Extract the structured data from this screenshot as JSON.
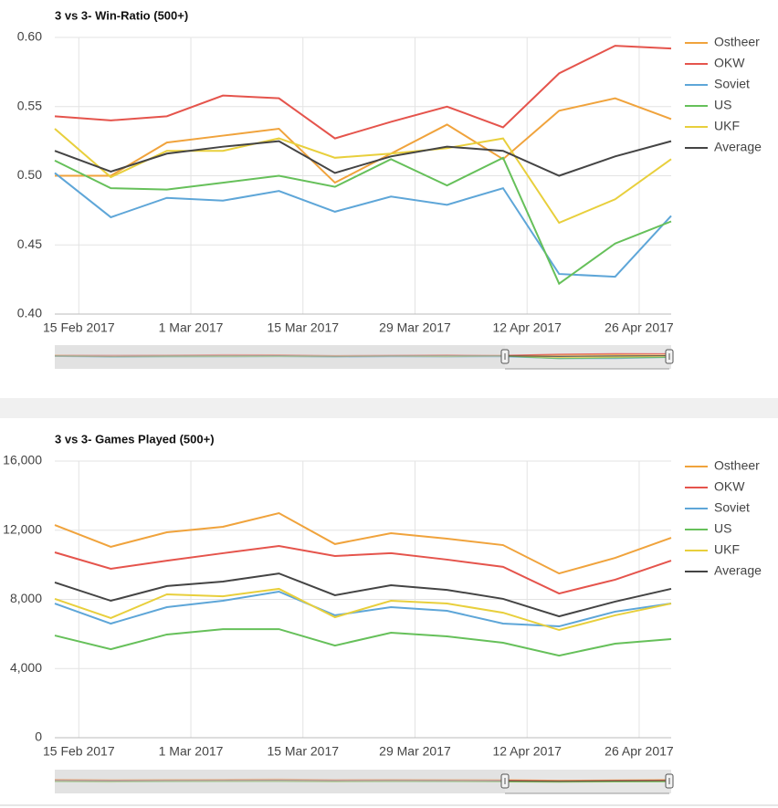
{
  "chart_data": [
    {
      "type": "line",
      "title": "3 vs 3- Win-Ratio (500+)",
      "x": [
        "2017-02-12",
        "2017-02-19",
        "2017-02-26",
        "2017-03-05",
        "2017-03-12",
        "2017-03-19",
        "2017-03-26",
        "2017-04-02",
        "2017-04-09",
        "2017-04-16",
        "2017-04-23",
        "2017-04-30"
      ],
      "xlim": [
        "2017-02-12",
        "2017-04-30"
      ],
      "xticks": [
        {
          "value": "2017-02-15",
          "label": "15 Feb 2017"
        },
        {
          "value": "2017-03-01",
          "label": "1 Mar 2017"
        },
        {
          "value": "2017-03-15",
          "label": "15 Mar 2017"
        },
        {
          "value": "2017-03-29",
          "label": "29 Mar 2017"
        },
        {
          "value": "2017-04-12",
          "label": "12 Apr 2017"
        },
        {
          "value": "2017-04-26",
          "label": "26 Apr 2017"
        }
      ],
      "ylim": [
        0.4,
        0.6
      ],
      "yticks": [
        {
          "value": 0.4,
          "label": "0.40"
        },
        {
          "value": 0.45,
          "label": "0.45"
        },
        {
          "value": 0.5,
          "label": "0.50"
        },
        {
          "value": 0.55,
          "label": "0.55"
        },
        {
          "value": 0.6,
          "label": "0.60"
        }
      ],
      "grid": true,
      "legend": "right",
      "series": [
        {
          "name": "Ostheer",
          "color": "#f0a33c",
          "values": [
            0.5,
            0.5,
            0.524,
            0.529,
            0.534,
            0.495,
            0.516,
            0.537,
            0.512,
            0.547,
            0.556,
            0.541
          ]
        },
        {
          "name": "OKW",
          "color": "#e5544c",
          "values": [
            0.543,
            0.54,
            0.543,
            0.558,
            0.556,
            0.527,
            0.539,
            0.55,
            0.535,
            0.574,
            0.594,
            0.592
          ]
        },
        {
          "name": "Soviet",
          "color": "#5ea6d8",
          "values": [
            0.502,
            0.47,
            0.484,
            0.482,
            0.489,
            0.474,
            0.485,
            0.479,
            0.491,
            0.429,
            0.427,
            0.471
          ]
        },
        {
          "name": "US",
          "color": "#66c05a",
          "values": [
            0.511,
            0.491,
            0.49,
            0.495,
            0.5,
            0.492,
            0.512,
            0.493,
            0.513,
            0.422,
            0.451,
            0.467
          ]
        },
        {
          "name": "UKF",
          "color": "#e8cf3c",
          "values": [
            0.534,
            0.499,
            0.518,
            0.518,
            0.527,
            0.513,
            0.516,
            0.52,
            0.527,
            0.466,
            0.483,
            0.512
          ]
        },
        {
          "name": "Average",
          "color": "#444444",
          "values": [
            0.518,
            0.503,
            0.516,
            0.521,
            0.525,
            0.502,
            0.514,
            0.521,
            0.518,
            0.5,
            0.514,
            0.525
          ]
        }
      ]
    },
    {
      "type": "line",
      "title": "3 vs 3- Games Played (500+)",
      "x": [
        "2017-02-12",
        "2017-02-19",
        "2017-02-26",
        "2017-03-05",
        "2017-03-12",
        "2017-03-19",
        "2017-03-26",
        "2017-04-02",
        "2017-04-09",
        "2017-04-16",
        "2017-04-23",
        "2017-04-30"
      ],
      "xlim": [
        "2017-02-12",
        "2017-04-30"
      ],
      "xticks": [
        {
          "value": "2017-02-15",
          "label": "15 Feb 2017"
        },
        {
          "value": "2017-03-01",
          "label": "1 Mar 2017"
        },
        {
          "value": "2017-03-15",
          "label": "15 Mar 2017"
        },
        {
          "value": "2017-03-29",
          "label": "29 Mar 2017"
        },
        {
          "value": "2017-04-12",
          "label": "12 Apr 2017"
        },
        {
          "value": "2017-04-26",
          "label": "26 Apr 2017"
        }
      ],
      "ylim": [
        0,
        16000
      ],
      "yticks": [
        0,
        {
          "value": 4000,
          "label": "4,000"
        },
        {
          "value": 8000,
          "label": "8,000"
        },
        {
          "value": 12000,
          "label": "12,000"
        },
        {
          "value": 16000,
          "label": "16,000"
        }
      ],
      "grid": true,
      "legend": "right",
      "series": [
        {
          "name": "Ostheer",
          "color": "#f0a33c",
          "values": [
            12300,
            11040,
            11880,
            12200,
            12990,
            11200,
            11830,
            11510,
            11140,
            9500,
            10400,
            11560
          ]
        },
        {
          "name": "OKW",
          "color": "#e5544c",
          "values": [
            10720,
            9770,
            10240,
            10670,
            11090,
            10510,
            10670,
            10300,
            9880,
            8340,
            9140,
            10240
          ]
        },
        {
          "name": "Soviet",
          "color": "#5ea6d8",
          "values": [
            7760,
            6600,
            7550,
            7920,
            8450,
            7080,
            7550,
            7340,
            6600,
            6440,
            7290,
            7760
          ]
        },
        {
          "name": "US",
          "color": "#66c05a",
          "values": [
            5910,
            5120,
            5970,
            6280,
            6280,
            5330,
            6070,
            5860,
            5490,
            4750,
            5440,
            5700
          ]
        },
        {
          "name": "UKF",
          "color": "#e8cf3c",
          "values": [
            8030,
            6920,
            8290,
            8180,
            8610,
            6970,
            7920,
            7760,
            7230,
            6230,
            7080,
            7760
          ]
        },
        {
          "name": "Average",
          "color": "#444444",
          "values": [
            8980,
            7920,
            8770,
            9030,
            9500,
            8240,
            8820,
            8550,
            8030,
            7020,
            7870,
            8610
          ]
        }
      ]
    }
  ]
}
